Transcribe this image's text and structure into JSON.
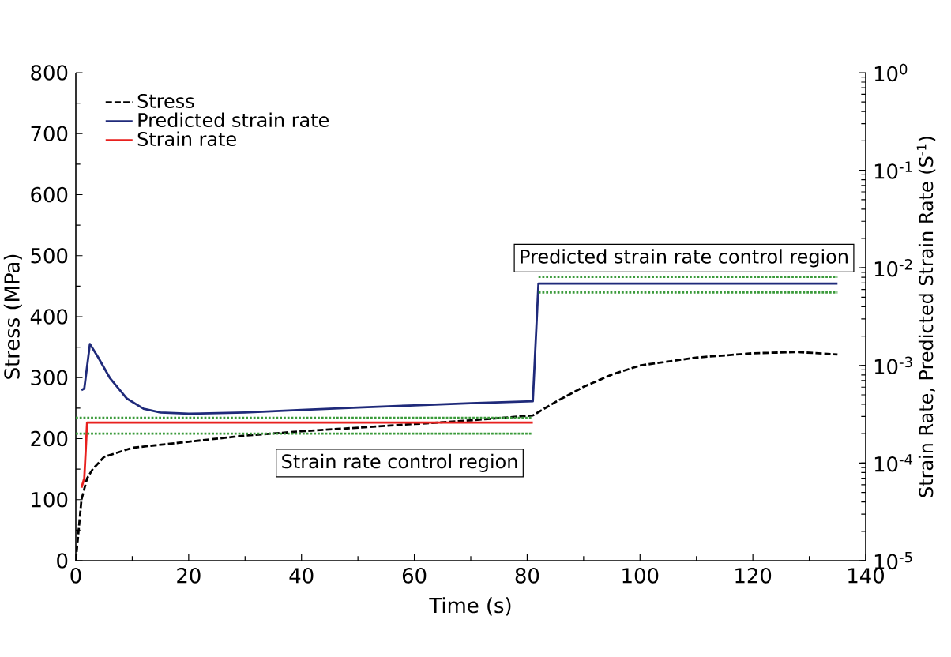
{
  "chart_data": {
    "type": "line",
    "xlabel": "Time (s)",
    "ylabel": "Stress (MPa)",
    "y2label": "Strain Rate, Predicted Strain Rate (S$^{-1}$)",
    "xlim": [
      0,
      140
    ],
    "xticks": [
      0,
      20,
      40,
      60,
      80,
      100,
      120,
      140
    ],
    "ylim": [
      0,
      800
    ],
    "yticks": [
      0,
      100,
      200,
      300,
      400,
      500,
      600,
      700,
      800
    ],
    "log": "y2",
    "y2lim": [
      1e-05,
      1
    ],
    "y2ticks": [
      {
        "value": 1e-05,
        "label": "10$^{-5}$"
      },
      {
        "value": 0.0001,
        "label": "10$^{-4}$"
      },
      {
        "value": 0.001,
        "label": "10$^{-3}$"
      },
      {
        "value": 0.01,
        "label": "10$^{-2}$"
      },
      {
        "value": 0.1,
        "label": "10$^{-1}$"
      },
      {
        "value": 1,
        "label": "10$^{0}$"
      }
    ],
    "legend": "top left",
    "grid": false,
    "series": [
      {
        "name": "Stress",
        "color": "#000000",
        "line_style": "dashed",
        "x": [
          0,
          1,
          2,
          3,
          5,
          10,
          20,
          30,
          40,
          50,
          60,
          70,
          81,
          85,
          90,
          95,
          100,
          110,
          120,
          128,
          135
        ],
        "values": [
          0,
          100,
          135,
          150,
          170,
          185,
          195,
          205,
          212,
          218,
          224,
          230,
          238,
          260,
          285,
          305,
          320,
          333,
          340,
          342,
          338
        ]
      },
      {
        "name": "Predicted strain rate",
        "color": "#1f2a7a",
        "axis": "y2",
        "line_style": "solid",
        "x": [
          1,
          1.5,
          2.5,
          4,
          6,
          9,
          12,
          15,
          20,
          30,
          40,
          50,
          60,
          70,
          81,
          82,
          90,
          100,
          110,
          120,
          135
        ],
        "values": [
          0.00056,
          0.00058,
          0.00166,
          0.0012,
          0.00075,
          0.00046,
          0.00036,
          0.00033,
          0.00032,
          0.00033,
          0.00035,
          0.00037,
          0.00039,
          0.00041,
          0.00043,
          0.0069,
          0.0069,
          0.0069,
          0.0069,
          0.0069,
          0.0069
        ]
      },
      {
        "name": "Strain rate",
        "color": "#e8201e",
        "axis": "y2",
        "line_style": "solid",
        "x": [
          1,
          1.5,
          2,
          3,
          10,
          20,
          40,
          60,
          81
        ],
        "values": [
          5.6e-05,
          7e-05,
          0.00026,
          0.00026,
          0.00026,
          0.00026,
          0.00026,
          0.00026,
          0.00026
        ]
      },
      {
        "color": "#3a9a3a",
        "axis": "y2",
        "line_style": "dotted",
        "x": [
          0,
          81
        ],
        "values": [
          0.00029,
          0.00029
        ]
      },
      {
        "color": "#3a9a3a",
        "axis": "y2",
        "line_style": "dotted",
        "x": [
          0,
          81
        ],
        "values": [
          0.0002,
          0.0002
        ]
      },
      {
        "color": "#3a9a3a",
        "axis": "y2",
        "line_style": "dotted",
        "x": [
          82,
          135
        ],
        "values": [
          0.0081,
          0.0081
        ]
      },
      {
        "color": "#3a9a3a",
        "axis": "y2",
        "line_style": "dotted",
        "x": [
          82,
          135
        ],
        "values": [
          0.0056,
          0.0056
        ]
      }
    ],
    "annotations": [
      "Strain rate control region",
      "Predicted strain rate control region"
    ]
  }
}
